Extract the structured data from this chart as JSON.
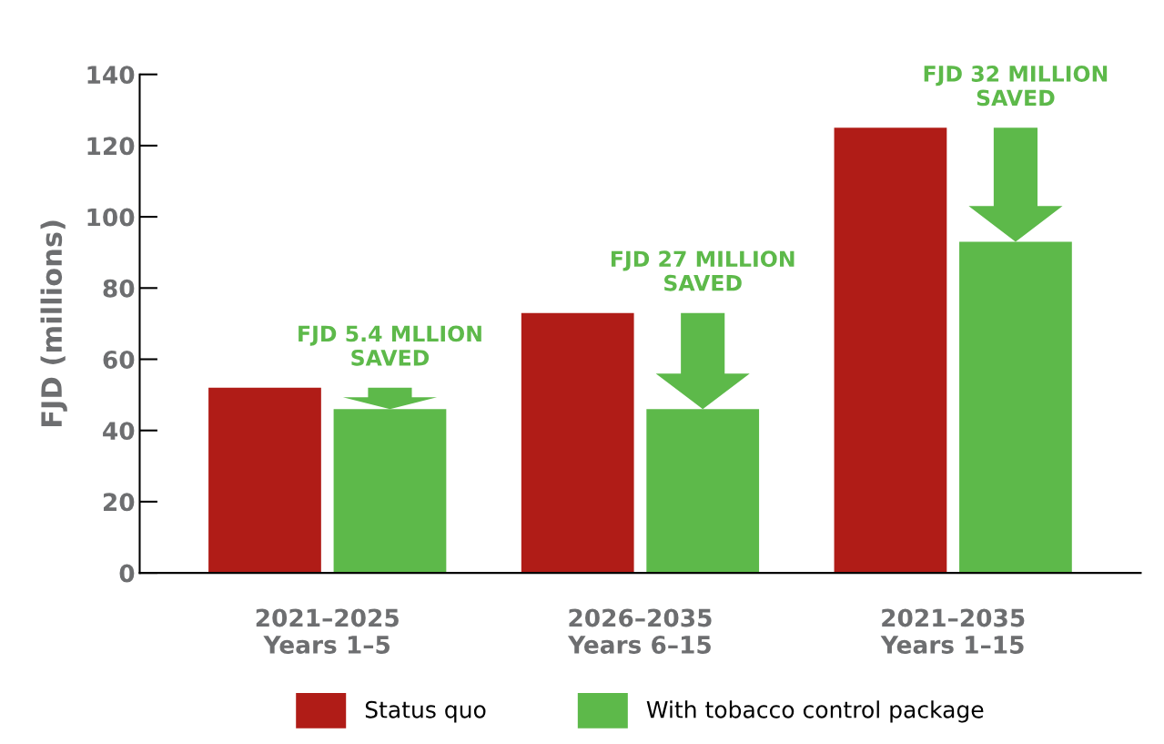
{
  "chart_data": {
    "type": "bar",
    "ylabel": "FJD (millions)",
    "categories": [
      "2021–2025\nYears 1–5",
      "2026–2035\nYears 6–15",
      "2021–2035\nYears 1–15"
    ],
    "series": [
      {
        "name": "Status quo",
        "color": "#b01c17",
        "values": [
          52,
          73,
          125
        ]
      },
      {
        "name": "With tobacco control package",
        "color": "#5db94a",
        "values": [
          46,
          46,
          93
        ]
      }
    ],
    "ylim": [
      0,
      140
    ],
    "yticks": [
      0,
      20,
      40,
      60,
      80,
      100,
      120,
      140
    ],
    "grid": false,
    "legend": "bottom",
    "annotations": [
      "FJD 5.4 MLLION\nSAVED",
      "FJD 27 MILLION\nSAVED",
      "FJD 32 MILLION\nSAVED"
    ]
  }
}
